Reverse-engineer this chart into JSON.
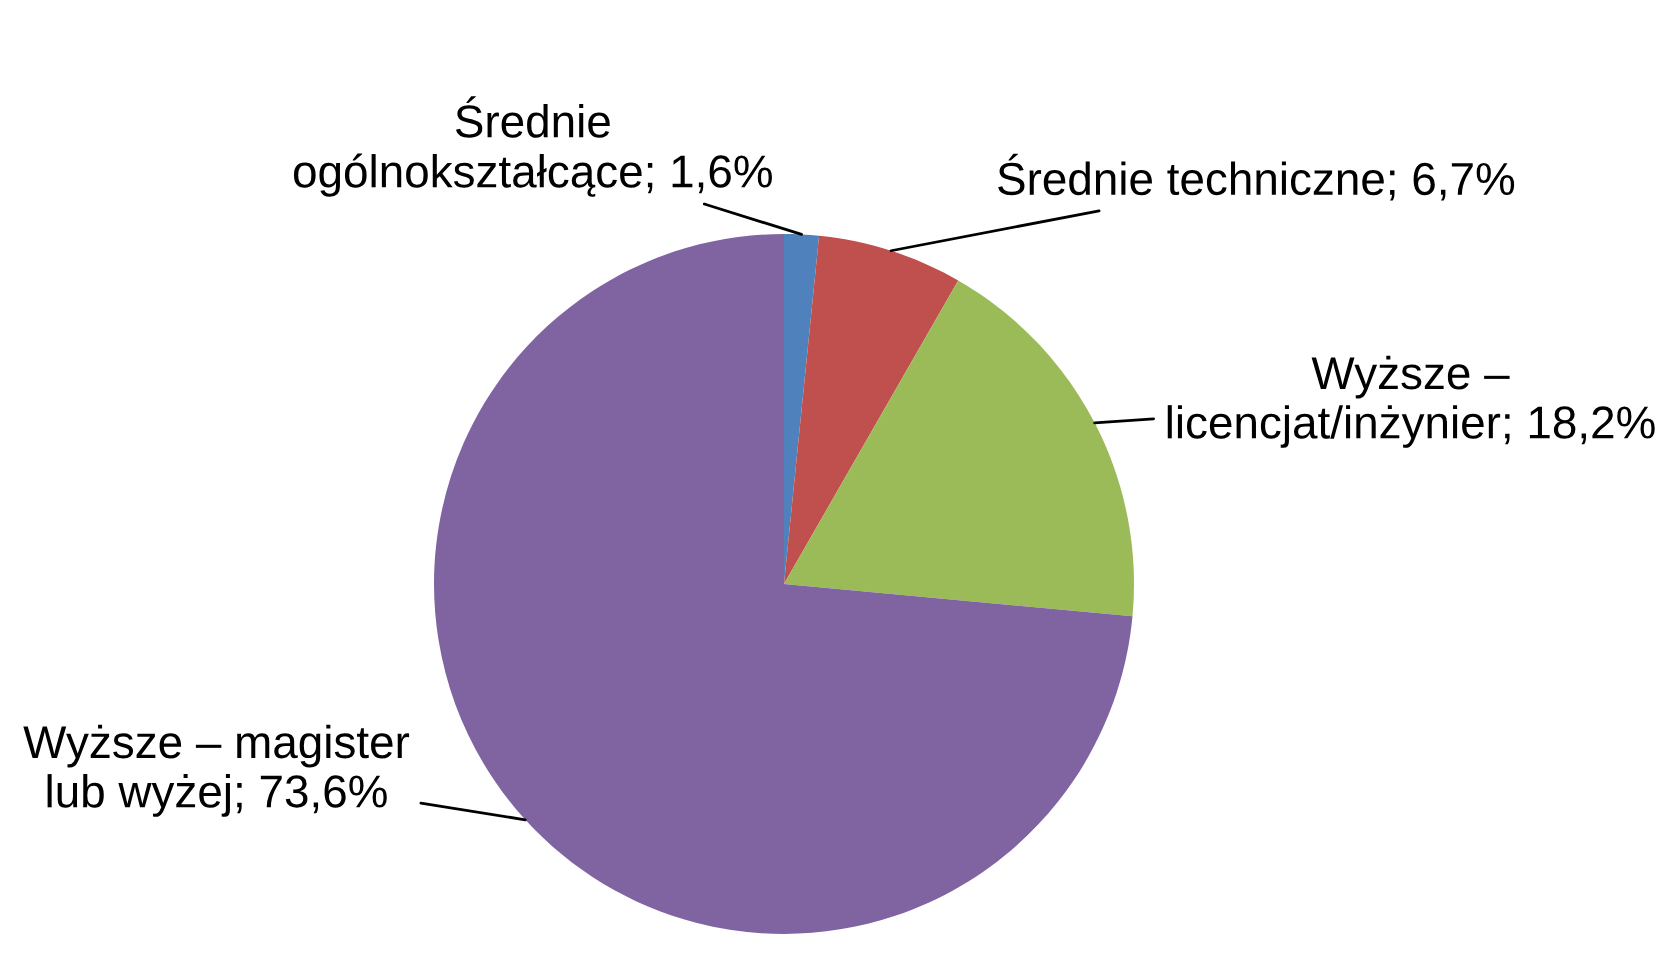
{
  "chart_data": {
    "type": "pie",
    "categories": [
      "Średnie ogólnokształcące",
      "Średnie techniczne",
      "Wyższe – licencjat/inżynier",
      "Wyższe – magister lub wyżej"
    ],
    "values": [
      1.6,
      6.7,
      18.2,
      73.6
    ],
    "colors": [
      "#4f81bd",
      "#c0504d",
      "#9bbb59",
      "#8064a2"
    ],
    "value_labels": [
      "1,6%",
      "6,7%",
      "18,2%",
      "73,6%"
    ]
  }
}
